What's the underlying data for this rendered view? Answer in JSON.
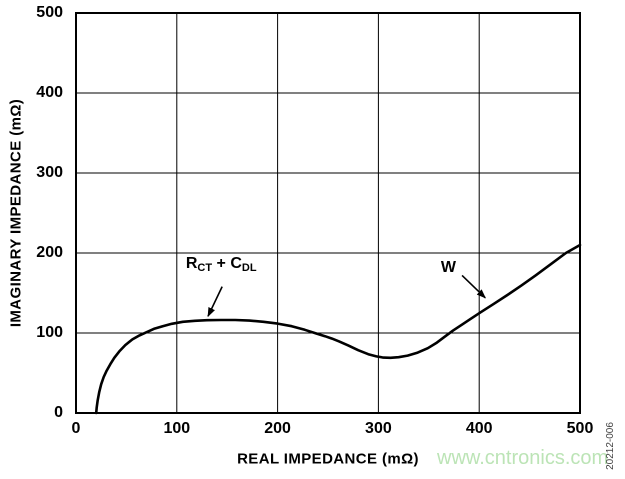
{
  "watermark": {
    "text": "www.cntronics.com",
    "color": "#bce4b6"
  },
  "figure_code": "20212-006",
  "chart_data": {
    "type": "line",
    "title": "",
    "xlabel": "REAL IMPEDANCE (mΩ)",
    "ylabel": "IMAGINARY IMPEDANCE (mΩ)",
    "xlim": [
      0,
      500
    ],
    "ylim": [
      0,
      500
    ],
    "xticks": [
      0,
      100,
      200,
      300,
      400,
      500
    ],
    "yticks": [
      0,
      100,
      200,
      300,
      400,
      500
    ],
    "grid": true,
    "grid_color": "#000000",
    "curve_color": "#000000",
    "legend": "none",
    "series": [
      {
        "name": "impedance-curve",
        "points": [
          [
            20,
            0
          ],
          [
            20.5,
            7
          ],
          [
            21.5,
            16
          ],
          [
            23,
            26
          ],
          [
            25,
            36
          ],
          [
            27.5,
            45
          ],
          [
            30.5,
            53
          ],
          [
            34,
            61
          ],
          [
            38,
            69
          ],
          [
            43,
            77
          ],
          [
            49,
            85
          ],
          [
            56,
            92
          ],
          [
            63,
            97
          ],
          [
            70,
            101
          ],
          [
            78,
            105.5
          ],
          [
            86,
            108.5
          ],
          [
            95,
            111.5
          ],
          [
            106,
            114
          ],
          [
            118,
            115.3
          ],
          [
            130,
            116
          ],
          [
            144,
            116.3
          ],
          [
            158,
            116.2
          ],
          [
            172,
            115.5
          ],
          [
            186,
            114
          ],
          [
            200,
            111.8
          ],
          [
            214,
            108.5
          ],
          [
            227,
            104
          ],
          [
            238,
            99.5
          ],
          [
            247,
            96
          ],
          [
            254,
            93
          ],
          [
            261,
            89.5
          ],
          [
            270,
            84.5
          ],
          [
            280,
            78.5
          ],
          [
            290,
            73.5
          ],
          [
            298,
            70.8
          ],
          [
            305,
            69.3
          ],
          [
            312,
            69
          ],
          [
            320,
            69.8
          ],
          [
            329,
            71.8
          ],
          [
            339,
            75.5
          ],
          [
            349,
            81
          ],
          [
            358,
            88
          ],
          [
            366,
            95.5
          ],
          [
            374,
            103
          ],
          [
            383,
            110.5
          ],
          [
            392,
            118
          ],
          [
            401,
            125.5
          ],
          [
            414,
            136
          ],
          [
            428,
            147.5
          ],
          [
            442,
            159.5
          ],
          [
            456,
            172
          ],
          [
            471,
            186
          ],
          [
            486,
            200
          ],
          [
            500,
            210
          ]
        ]
      }
    ],
    "annotations": [
      {
        "id": "rct-cdl",
        "parts": [
          [
            "R",
            false
          ],
          [
            "CT",
            true
          ],
          [
            " + C",
            false
          ],
          [
            "DL",
            true
          ]
        ],
        "label_pos": [
          109,
          196
        ],
        "arrow_from": [
          145,
          158
        ],
        "arrow_to": [
          131,
          121
        ]
      },
      {
        "id": "warburg",
        "parts": [
          [
            "W",
            false
          ]
        ],
        "label_pos": [
          362,
          191
        ],
        "arrow_from": [
          383,
          172
        ],
        "arrow_to": [
          406,
          144
        ]
      }
    ]
  }
}
